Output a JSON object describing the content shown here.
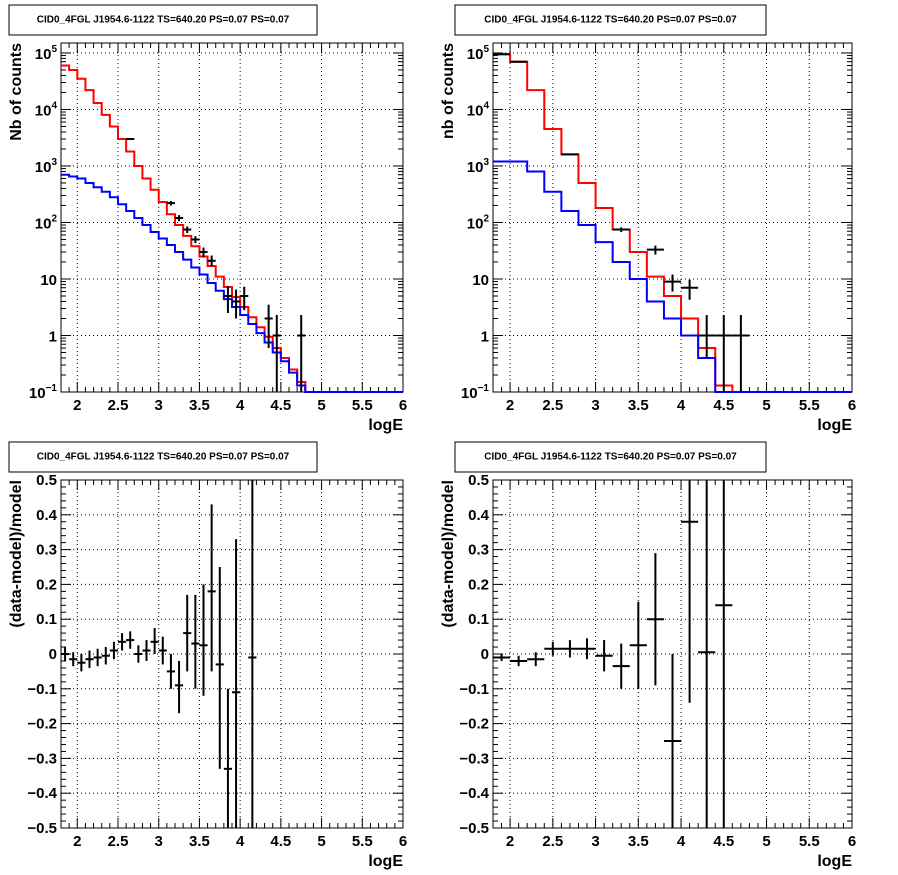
{
  "chart_data": [
    {
      "type": "line",
      "title": "CID0_4FGL J1954.6-1122 TS=640.20 PS=0.07 PS=0.07",
      "xlabel": "logE",
      "ylabel": "Nb of counts",
      "log_y": true,
      "xlim": [
        1.8,
        6
      ],
      "ylim": [
        0.1,
        150000
      ],
      "grid": true,
      "x_ticks": [
        "2",
        "2.5",
        "3",
        "3.5",
        "4",
        "4.5",
        "5",
        "5.5",
        "6"
      ],
      "y_ticks": [
        {
          "base": "10",
          "exp": "5"
        },
        {
          "base": "10",
          "exp": "4"
        },
        {
          "base": "10",
          "exp": "3"
        },
        {
          "base": "10",
          "exp": "2"
        },
        {
          "base": "10",
          "exp": ""
        },
        {
          "base": "1",
          "exp": ""
        },
        {
          "base": "10",
          "exp": "−1"
        }
      ],
      "bin_edges": [
        1.8,
        1.9,
        2.0,
        2.1,
        2.2,
        2.3,
        2.4,
        2.5,
        2.6,
        2.7,
        2.8,
        2.9,
        3.0,
        3.1,
        3.2,
        3.3,
        3.4,
        3.5,
        3.6,
        3.7,
        3.8,
        3.9,
        4.0,
        4.1,
        4.2,
        4.3,
        4.4,
        4.5,
        4.6,
        4.7,
        4.8,
        4.9,
        5.0,
        5.1,
        5.2,
        5.3,
        5.4,
        5.5,
        5.6,
        5.7,
        5.8,
        5.9,
        6.0
      ],
      "series": [
        {
          "color": "#ff0000",
          "values": [
            60000,
            50000,
            35000,
            22000,
            13000,
            8000,
            5000,
            3000,
            1800,
            1000,
            600,
            380,
            230,
            140,
            90,
            58,
            38,
            25,
            17,
            11,
            7.2,
            4.8,
            3.2,
            2.1,
            1.4,
            0.95,
            0.6,
            0.4,
            0.25,
            0.15,
            0.1,
            0.1,
            0.1,
            0.1,
            0.1,
            0.1,
            0.1,
            0.1,
            0.1,
            0.1,
            0.1,
            0.1
          ]
        },
        {
          "color": "#0000ff",
          "values": [
            700,
            650,
            600,
            500,
            420,
            350,
            280,
            210,
            160,
            120,
            90,
            68,
            52,
            40,
            30,
            22,
            16,
            12,
            8.5,
            6.2,
            4.4,
            3.2,
            2.3,
            1.6,
            1.1,
            0.75,
            0.5,
            0.35,
            0.22,
            0.13,
            0.1,
            0.1,
            0.1,
            0.1,
            0.1,
            0.1,
            0.1,
            0.1,
            0.1,
            0.1,
            0.1,
            0.1
          ]
        }
      ],
      "data_points": [
        {
          "x": 2.65,
          "y": 3000,
          "dx": 0.05,
          "lo": 2900,
          "hi": 3100
        },
        {
          "x": 3.15,
          "y": 220,
          "dx": 0.05,
          "lo": 200,
          "hi": 240
        },
        {
          "x": 3.25,
          "y": 120,
          "dx": 0.05,
          "lo": 105,
          "hi": 135
        },
        {
          "x": 3.35,
          "y": 75,
          "dx": 0.05,
          "lo": 65,
          "hi": 85
        },
        {
          "x": 3.45,
          "y": 50,
          "dx": 0.05,
          "lo": 43,
          "hi": 57
        },
        {
          "x": 3.55,
          "y": 30,
          "dx": 0.05,
          "lo": 24,
          "hi": 36
        },
        {
          "x": 3.65,
          "y": 21,
          "dx": 0.05,
          "lo": 17,
          "hi": 26
        },
        {
          "x": 3.85,
          "y": 5,
          "dx": 0.05,
          "lo": 2.5,
          "hi": 7.5
        },
        {
          "x": 3.95,
          "y": 4,
          "dx": 0.05,
          "lo": 2.0,
          "hi": 6.5
        },
        {
          "x": 4.05,
          "y": 5,
          "dx": 0.05,
          "lo": 2.8,
          "hi": 7.3
        },
        {
          "x": 4.35,
          "y": 2,
          "dx": 0.05,
          "lo": 0.6,
          "hi": 3.5
        },
        {
          "x": 4.45,
          "y": 1,
          "dx": 0.05,
          "lo": 0.1,
          "hi": 2.3
        },
        {
          "x": 4.75,
          "y": 1,
          "dx": 0.05,
          "lo": 0.1,
          "hi": 2.3
        }
      ]
    },
    {
      "type": "line",
      "title": "CID0_4FGL J1954.6-1122 TS=640.20 PS=0.07 PS=0.07",
      "xlabel": "logE",
      "ylabel": "nb of counts",
      "log_y": true,
      "xlim": [
        1.8,
        6
      ],
      "ylim": [
        0.1,
        150000
      ],
      "grid": true,
      "x_ticks": [
        "2",
        "2.5",
        "3",
        "3.5",
        "4",
        "4.5",
        "5",
        "5.5",
        "6"
      ],
      "y_ticks": [
        {
          "base": "10",
          "exp": "5"
        },
        {
          "base": "10",
          "exp": "4"
        },
        {
          "base": "10",
          "exp": "3"
        },
        {
          "base": "10",
          "exp": "2"
        },
        {
          "base": "10",
          "exp": ""
        },
        {
          "base": "1",
          "exp": ""
        },
        {
          "base": "10",
          "exp": "−1"
        }
      ],
      "bin_edges": [
        1.8,
        2.0,
        2.2,
        2.4,
        2.6,
        2.8,
        3.0,
        3.2,
        3.4,
        3.6,
        3.8,
        4.0,
        4.2,
        4.4,
        4.6,
        4.8,
        5.0,
        5.2,
        5.4,
        5.6,
        5.8,
        6.0
      ],
      "series": [
        {
          "color": "#ff0000",
          "values": [
            95000,
            70000,
            22000,
            4500,
            1600,
            500,
            180,
            75,
            30,
            11,
            5,
            2,
            0.6,
            0.13,
            0.1,
            0.1,
            0.1,
            0.1,
            0.1,
            0.1,
            0.1
          ]
        },
        {
          "color": "#0000ff",
          "values": [
            1200,
            1200,
            800,
            350,
            160,
            90,
            45,
            20,
            10,
            4,
            2,
            1,
            0.4,
            0.1,
            0.1,
            0.1,
            0.1,
            0.1,
            0.1,
            0.1,
            0.1
          ]
        }
      ],
      "data_points": [
        {
          "x": 1.9,
          "y": 95000,
          "dx": 0.1,
          "lo": 94000,
          "hi": 96000
        },
        {
          "x": 2.1,
          "y": 70000,
          "dx": 0.1,
          "lo": 69000,
          "hi": 71000
        },
        {
          "x": 2.7,
          "y": 1600,
          "dx": 0.1,
          "lo": 1550,
          "hi": 1650
        },
        {
          "x": 3.3,
          "y": 75,
          "dx": 0.1,
          "lo": 68,
          "hi": 82
        },
        {
          "x": 3.7,
          "y": 33,
          "dx": 0.1,
          "lo": 27,
          "hi": 39
        },
        {
          "x": 3.9,
          "y": 9,
          "dx": 0.1,
          "lo": 6,
          "hi": 12
        },
        {
          "x": 4.1,
          "y": 7,
          "dx": 0.1,
          "lo": 4.3,
          "hi": 9.7
        },
        {
          "x": 4.3,
          "y": 1,
          "dx": 0.1,
          "lo": 0.4,
          "hi": 2.3
        },
        {
          "x": 4.5,
          "y": 1,
          "dx": 0.1,
          "lo": 0.1,
          "hi": 2.3
        },
        {
          "x": 4.7,
          "y": 1,
          "dx": 0.1,
          "lo": 0.1,
          "hi": 2.3
        }
      ]
    },
    {
      "type": "scatter",
      "title": "CID0_4FGL J1954.6-1122 TS=640.20 PS=0.07 PS=0.07",
      "xlabel": "logE",
      "ylabel": "(data-model)/model",
      "xlim": [
        1.8,
        6
      ],
      "ylim": [
        -0.5,
        0.5
      ],
      "grid": true,
      "x_ticks": [
        "2",
        "2.5",
        "3",
        "3.5",
        "4",
        "4.5",
        "5",
        "5.5",
        "6"
      ],
      "y_ticks": [
        "0.5",
        "0.4",
        "0.3",
        "0.2",
        "0.1",
        "0",
        "−0.1",
        "−0.2",
        "−0.3",
        "−0.4",
        "−0.5"
      ],
      "points": [
        {
          "x": 1.85,
          "y": 0.0,
          "dx": 0.05,
          "lo": -0.02,
          "hi": 0.02
        },
        {
          "x": 1.95,
          "y": -0.015,
          "dx": 0.05,
          "lo": -0.035,
          "hi": 0.005
        },
        {
          "x": 2.05,
          "y": -0.025,
          "dx": 0.05,
          "lo": -0.05,
          "hi": 0.0
        },
        {
          "x": 2.15,
          "y": -0.015,
          "dx": 0.05,
          "lo": -0.04,
          "hi": 0.01
        },
        {
          "x": 2.25,
          "y": -0.01,
          "dx": 0.05,
          "lo": -0.035,
          "hi": 0.015
        },
        {
          "x": 2.35,
          "y": -0.005,
          "dx": 0.05,
          "lo": -0.03,
          "hi": 0.02
        },
        {
          "x": 2.45,
          "y": 0.01,
          "dx": 0.05,
          "lo": -0.015,
          "hi": 0.035
        },
        {
          "x": 2.55,
          "y": 0.035,
          "dx": 0.05,
          "lo": 0.01,
          "hi": 0.06
        },
        {
          "x": 2.65,
          "y": 0.04,
          "dx": 0.05,
          "lo": 0.015,
          "hi": 0.065
        },
        {
          "x": 2.75,
          "y": 0.0,
          "dx": 0.05,
          "lo": -0.025,
          "hi": 0.025
        },
        {
          "x": 2.85,
          "y": 0.01,
          "dx": 0.05,
          "lo": -0.02,
          "hi": 0.04
        },
        {
          "x": 2.95,
          "y": 0.035,
          "dx": 0.05,
          "lo": 0.0,
          "hi": 0.075
        },
        {
          "x": 3.05,
          "y": 0.01,
          "dx": 0.05,
          "lo": -0.03,
          "hi": 0.05
        },
        {
          "x": 3.15,
          "y": -0.05,
          "dx": 0.05,
          "lo": -0.1,
          "hi": 0.0
        },
        {
          "x": 3.25,
          "y": -0.09,
          "dx": 0.05,
          "lo": -0.17,
          "hi": -0.02
        },
        {
          "x": 3.35,
          "y": 0.06,
          "dx": 0.05,
          "lo": -0.05,
          "hi": 0.17
        },
        {
          "x": 3.45,
          "y": 0.03,
          "dx": 0.05,
          "lo": -0.1,
          "hi": 0.17
        },
        {
          "x": 3.55,
          "y": 0.025,
          "dx": 0.05,
          "lo": -0.12,
          "hi": 0.2
        },
        {
          "x": 3.65,
          "y": 0.18,
          "dx": 0.05,
          "lo": -0.05,
          "hi": 0.43
        },
        {
          "x": 3.75,
          "y": -0.03,
          "dx": 0.05,
          "lo": -0.33,
          "hi": 0.25
        },
        {
          "x": 3.85,
          "y": -0.33,
          "dx": 0.05,
          "lo": -0.5,
          "hi": -0.1
        },
        {
          "x": 3.95,
          "y": -0.11,
          "dx": 0.05,
          "lo": -0.5,
          "hi": 0.33
        },
        {
          "x": 4.15,
          "y": -0.01,
          "dx": 0.05,
          "lo": -0.5,
          "hi": 0.5
        }
      ]
    },
    {
      "type": "scatter",
      "title": "CID0_4FGL J1954.6-1122 TS=640.20 PS=0.07 PS=0.07",
      "xlabel": "logE",
      "ylabel": "(data-model)/model",
      "xlim": [
        1.8,
        6
      ],
      "ylim": [
        -0.5,
        0.5
      ],
      "grid": true,
      "x_ticks": [
        "2",
        "2.5",
        "3",
        "3.5",
        "4",
        "4.5",
        "5",
        "5.5",
        "6"
      ],
      "y_ticks": [
        "0.5",
        "0.4",
        "0.3",
        "0.2",
        "0.1",
        "0",
        "−0.1",
        "−0.2",
        "−0.3",
        "−0.4",
        "−0.5"
      ],
      "points": [
        {
          "x": 1.9,
          "y": -0.01,
          "dx": 0.1,
          "lo": -0.02,
          "hi": 0.0
        },
        {
          "x": 2.1,
          "y": -0.02,
          "dx": 0.1,
          "lo": -0.035,
          "hi": -0.005
        },
        {
          "x": 2.3,
          "y": -0.015,
          "dx": 0.1,
          "lo": -0.035,
          "hi": 0.005
        },
        {
          "x": 2.5,
          "y": 0.015,
          "dx": 0.1,
          "lo": -0.005,
          "hi": 0.035
        },
        {
          "x": 2.7,
          "y": 0.015,
          "dx": 0.1,
          "lo": -0.01,
          "hi": 0.04
        },
        {
          "x": 2.9,
          "y": 0.015,
          "dx": 0.1,
          "lo": -0.015,
          "hi": 0.045
        },
        {
          "x": 3.1,
          "y": -0.005,
          "dx": 0.1,
          "lo": -0.05,
          "hi": 0.04
        },
        {
          "x": 3.3,
          "y": -0.035,
          "dx": 0.1,
          "lo": -0.1,
          "hi": 0.03
        },
        {
          "x": 3.5,
          "y": 0.025,
          "dx": 0.1,
          "lo": -0.1,
          "hi": 0.15
        },
        {
          "x": 3.7,
          "y": 0.1,
          "dx": 0.1,
          "lo": -0.09,
          "hi": 0.29
        },
        {
          "x": 3.9,
          "y": -0.25,
          "dx": 0.1,
          "lo": -0.5,
          "hi": 0.0
        },
        {
          "x": 4.1,
          "y": 0.38,
          "dx": 0.1,
          "lo": -0.14,
          "hi": 0.5
        },
        {
          "x": 4.3,
          "y": 0.005,
          "dx": 0.1,
          "lo": -0.5,
          "hi": 0.5
        },
        {
          "x": 4.5,
          "y": 0.14,
          "dx": 0.1,
          "lo": -0.5,
          "hi": 0.5
        }
      ]
    }
  ]
}
